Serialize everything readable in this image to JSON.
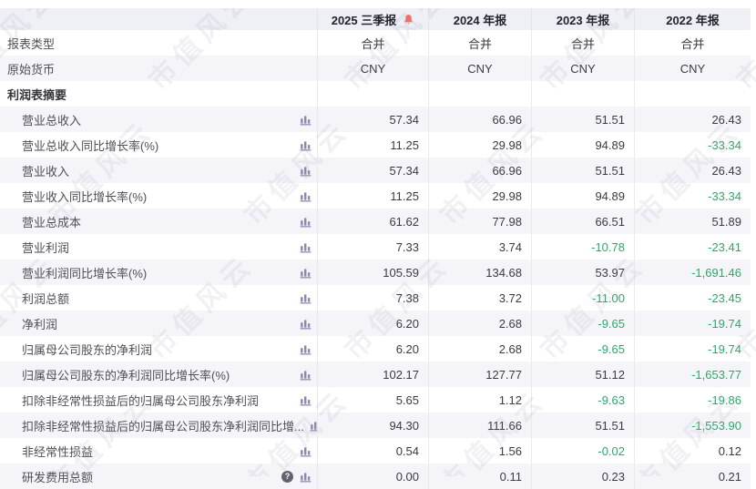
{
  "watermark": "市值风云",
  "colors": {
    "negative_value": "#2aa96b",
    "alert_bell": "#f56c6c",
    "header_bg": "#eef0f6",
    "stripe_bg": "#f5f5f9",
    "chart_icon": "#8a8aab"
  },
  "table": {
    "columns": [
      "2025 三季报",
      "2024 年报",
      "2023 年报",
      "2022 年报"
    ],
    "rows": [
      {
        "label": "报表类型",
        "indent": 0,
        "section": false,
        "chart": false,
        "help": false,
        "align": "center",
        "values": [
          "合并",
          "合并",
          "合并",
          "合并"
        ]
      },
      {
        "label": "原始货币",
        "indent": 0,
        "section": false,
        "chart": false,
        "help": false,
        "align": "center",
        "values": [
          "CNY",
          "CNY",
          "CNY",
          "CNY"
        ]
      },
      {
        "label": "利润表摘要",
        "indent": 0,
        "section": true,
        "chart": false,
        "help": false,
        "align": "right",
        "values": [
          "",
          "",
          "",
          ""
        ]
      },
      {
        "label": "营业总收入",
        "indent": 1,
        "section": false,
        "chart": true,
        "help": false,
        "align": "right",
        "values": [
          "57.34",
          "66.96",
          "51.51",
          "26.43"
        ]
      },
      {
        "label": "营业总收入同比增长率(%)",
        "indent": 1,
        "section": false,
        "chart": true,
        "help": false,
        "align": "right",
        "values": [
          "11.25",
          "29.98",
          "94.89",
          "-33.34"
        ]
      },
      {
        "label": "营业收入",
        "indent": 1,
        "section": false,
        "chart": true,
        "help": false,
        "align": "right",
        "values": [
          "57.34",
          "66.96",
          "51.51",
          "26.43"
        ]
      },
      {
        "label": "营业收入同比增长率(%)",
        "indent": 1,
        "section": false,
        "chart": true,
        "help": false,
        "align": "right",
        "values": [
          "11.25",
          "29.98",
          "94.89",
          "-33.34"
        ]
      },
      {
        "label": "营业总成本",
        "indent": 1,
        "section": false,
        "chart": true,
        "help": false,
        "align": "right",
        "values": [
          "61.62",
          "77.98",
          "66.51",
          "51.89"
        ]
      },
      {
        "label": "营业利润",
        "indent": 1,
        "section": false,
        "chart": true,
        "help": false,
        "align": "right",
        "values": [
          "7.33",
          "3.74",
          "-10.78",
          "-23.41"
        ]
      },
      {
        "label": "营业利润同比增长率(%)",
        "indent": 1,
        "section": false,
        "chart": true,
        "help": false,
        "align": "right",
        "values": [
          "105.59",
          "134.68",
          "53.97",
          "-1,691.46"
        ]
      },
      {
        "label": "利润总额",
        "indent": 1,
        "section": false,
        "chart": true,
        "help": false,
        "align": "right",
        "values": [
          "7.38",
          "3.72",
          "-11.00",
          "-23.45"
        ]
      },
      {
        "label": "净利润",
        "indent": 1,
        "section": false,
        "chart": true,
        "help": false,
        "align": "right",
        "values": [
          "6.20",
          "2.68",
          "-9.65",
          "-19.74"
        ]
      },
      {
        "label": "归属母公司股东的净利润",
        "indent": 1,
        "section": false,
        "chart": true,
        "help": false,
        "align": "right",
        "values": [
          "6.20",
          "2.68",
          "-9.65",
          "-19.74"
        ]
      },
      {
        "label": "归属母公司股东的净利润同比增长率(%)",
        "indent": 1,
        "section": false,
        "chart": true,
        "help": false,
        "align": "right",
        "values": [
          "102.17",
          "127.77",
          "51.12",
          "-1,653.77"
        ]
      },
      {
        "label": "扣除非经常性损益后的归属母公司股东净利润",
        "indent": 1,
        "section": false,
        "chart": true,
        "help": false,
        "align": "right",
        "values": [
          "5.65",
          "1.12",
          "-9.63",
          "-19.86"
        ]
      },
      {
        "label": "扣除非经常性损益后的归属母公司股东净利润同比增...",
        "indent": 1,
        "section": false,
        "chart": true,
        "help": false,
        "align": "right",
        "values": [
          "94.30",
          "111.66",
          "51.51",
          "-1,553.90"
        ]
      },
      {
        "label": "非经常性损益",
        "indent": 1,
        "section": false,
        "chart": true,
        "help": false,
        "align": "right",
        "values": [
          "0.54",
          "1.56",
          "-0.02",
          "0.12"
        ]
      },
      {
        "label": "研发费用总额",
        "indent": 1,
        "section": false,
        "chart": true,
        "help": true,
        "align": "right",
        "values": [
          "0.00",
          "0.11",
          "0.23",
          "0.21"
        ]
      }
    ]
  }
}
